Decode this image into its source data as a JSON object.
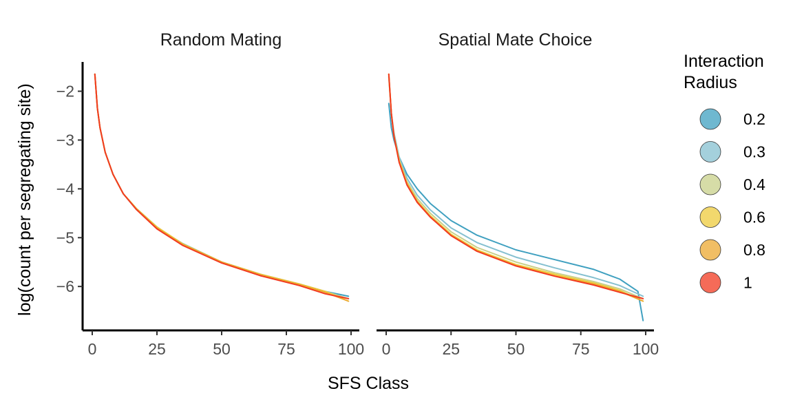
{
  "chart_data": {
    "type": "line",
    "xlabel": "SFS Class",
    "ylabel": "log(count per segregating site)",
    "xlim": [
      0,
      100
    ],
    "ylim": [
      -6.9,
      -1.4
    ],
    "x_ticks": [
      0,
      25,
      50,
      75,
      100
    ],
    "y_ticks": [
      -2,
      -3,
      -4,
      -5,
      -6
    ],
    "x_tick_labels": [
      "0",
      "25",
      "50",
      "75",
      "100"
    ],
    "y_tick_labels": [
      "−2",
      "−3",
      "−4",
      "−5",
      "−6"
    ],
    "grid": false,
    "legend": {
      "title_lines": [
        "Interaction",
        "Radius"
      ],
      "placement": "right",
      "entries": [
        {
          "label": "0.2",
          "color": "#3fa0c0"
        },
        {
          "label": "0.3",
          "color": "#85c0d0"
        },
        {
          "label": "0.4",
          "color": "#c8d08a"
        },
        {
          "label": "0.6",
          "color": "#eecb3c"
        },
        {
          "label": "0.8",
          "color": "#eca830"
        },
        {
          "label": "1",
          "color": "#f23a20"
        }
      ]
    },
    "panels": [
      {
        "title": "Random Mating",
        "series": [
          {
            "name": "0.2",
            "color": "#3fa0c0",
            "x": [
              1,
              2,
              3,
              5,
              8,
              12,
              17,
              25,
              35,
              50,
              65,
              80,
              90,
              99
            ],
            "y": [
              -1.65,
              -2.35,
              -2.75,
              -3.25,
              -3.7,
              -4.1,
              -4.4,
              -4.78,
              -5.15,
              -5.5,
              -5.75,
              -5.95,
              -6.1,
              -6.2
            ]
          },
          {
            "name": "0.3",
            "color": "#85c0d0",
            "x": [
              1,
              2,
              3,
              5,
              8,
              12,
              17,
              25,
              35,
              50,
              65,
              80,
              90,
              99
            ],
            "y": [
              -1.65,
              -2.35,
              -2.75,
              -3.25,
              -3.7,
              -4.1,
              -4.42,
              -4.8,
              -5.12,
              -5.5,
              -5.76,
              -5.96,
              -6.1,
              -6.25
            ]
          },
          {
            "name": "0.4",
            "color": "#c8d08a",
            "x": [
              1,
              2,
              3,
              5,
              8,
              12,
              17,
              25,
              35,
              50,
              65,
              80,
              90,
              99
            ],
            "y": [
              -1.65,
              -2.35,
              -2.75,
              -3.25,
              -3.7,
              -4.1,
              -4.4,
              -4.8,
              -5.13,
              -5.5,
              -5.75,
              -5.95,
              -6.1,
              -6.25
            ]
          },
          {
            "name": "0.6",
            "color": "#eecb3c",
            "x": [
              1,
              2,
              3,
              5,
              8,
              12,
              17,
              25,
              35,
              50,
              65,
              80,
              90,
              99
            ],
            "y": [
              -1.65,
              -2.35,
              -2.75,
              -3.25,
              -3.7,
              -4.1,
              -4.4,
              -4.78,
              -5.13,
              -5.5,
              -5.75,
              -5.95,
              -6.1,
              -6.3
            ]
          },
          {
            "name": "0.8",
            "color": "#eca830",
            "x": [
              1,
              2,
              3,
              5,
              8,
              12,
              17,
              25,
              35,
              50,
              65,
              80,
              90,
              99
            ],
            "y": [
              -1.65,
              -2.35,
              -2.75,
              -3.25,
              -3.7,
              -4.1,
              -4.41,
              -4.8,
              -5.14,
              -5.5,
              -5.76,
              -5.96,
              -6.12,
              -6.3
            ]
          },
          {
            "name": "1",
            "color": "#f23a20",
            "x": [
              1,
              2,
              3,
              5,
              8,
              12,
              17,
              25,
              35,
              50,
              65,
              80,
              90,
              99
            ],
            "y": [
              -1.65,
              -2.35,
              -2.75,
              -3.25,
              -3.7,
              -4.1,
              -4.42,
              -4.82,
              -5.16,
              -5.52,
              -5.78,
              -5.98,
              -6.15,
              -6.25
            ]
          }
        ]
      },
      {
        "title": "Spatial Mate Choice",
        "series": [
          {
            "name": "0.2",
            "color": "#3fa0c0",
            "x": [
              1,
              2,
              3,
              5,
              8,
              12,
              17,
              25,
              35,
              50,
              65,
              80,
              90,
              97,
              99
            ],
            "y": [
              -2.25,
              -2.75,
              -3.0,
              -3.35,
              -3.7,
              -4.0,
              -4.3,
              -4.65,
              -4.95,
              -5.25,
              -5.45,
              -5.65,
              -5.85,
              -6.1,
              -6.7
            ]
          },
          {
            "name": "0.3",
            "color": "#85c0d0",
            "x": [
              1,
              2,
              3,
              5,
              8,
              12,
              17,
              25,
              35,
              50,
              65,
              80,
              90,
              99
            ],
            "y": [
              -1.7,
              -2.45,
              -2.85,
              -3.35,
              -3.78,
              -4.13,
              -4.43,
              -4.8,
              -5.1,
              -5.4,
              -5.62,
              -5.82,
              -5.98,
              -6.2
            ]
          },
          {
            "name": "0.4",
            "color": "#c8d08a",
            "x": [
              1,
              2,
              3,
              5,
              8,
              12,
              17,
              25,
              35,
              50,
              65,
              80,
              90,
              99
            ],
            "y": [
              -1.7,
              -2.45,
              -2.9,
              -3.4,
              -3.85,
              -4.2,
              -4.5,
              -4.88,
              -5.2,
              -5.5,
              -5.72,
              -5.9,
              -6.05,
              -6.25
            ]
          },
          {
            "name": "0.6",
            "color": "#eecb3c",
            "x": [
              1,
              2,
              3,
              5,
              8,
              12,
              17,
              25,
              35,
              50,
              65,
              80,
              90,
              99
            ],
            "y": [
              -1.65,
              -2.45,
              -2.9,
              -3.42,
              -3.88,
              -4.25,
              -4.55,
              -4.93,
              -5.25,
              -5.55,
              -5.75,
              -5.93,
              -6.08,
              -6.3
            ]
          },
          {
            "name": "0.8",
            "color": "#eca830",
            "x": [
              1,
              2,
              3,
              5,
              8,
              12,
              17,
              25,
              35,
              50,
              65,
              80,
              90,
              99
            ],
            "y": [
              -1.65,
              -2.45,
              -2.92,
              -3.45,
              -3.9,
              -4.26,
              -4.57,
              -4.95,
              -5.27,
              -5.57,
              -5.78,
              -5.95,
              -6.1,
              -6.3
            ]
          },
          {
            "name": "1",
            "color": "#f23a20",
            "x": [
              1,
              2,
              3,
              5,
              8,
              12,
              17,
              25,
              35,
              50,
              65,
              80,
              90,
              99
            ],
            "y": [
              -1.65,
              -2.45,
              -2.92,
              -3.46,
              -3.92,
              -4.28,
              -4.58,
              -4.96,
              -5.28,
              -5.58,
              -5.79,
              -5.97,
              -6.12,
              -6.25
            ]
          }
        ]
      }
    ]
  }
}
